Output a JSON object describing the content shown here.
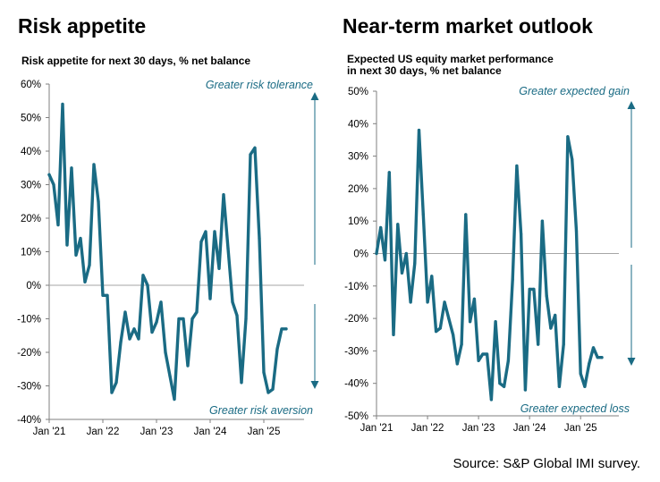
{
  "source": "Source: S&P Global IMI survey.",
  "chart_data": [
    {
      "type": "line",
      "title": "Risk appetite",
      "subtitle": "Risk appetite for next 30 days, % net balance",
      "color": "#1a6b84",
      "ylim": [
        -40,
        60
      ],
      "yticks": [
        60,
        50,
        40,
        30,
        20,
        10,
        0,
        -10,
        -20,
        -30,
        -40
      ],
      "ytick_labels": [
        "60%",
        "50%",
        "40%",
        "30%",
        "20%",
        "10%",
        "0%",
        "-10%",
        "-20%",
        "-30%",
        "-40%"
      ],
      "xlim": [
        2021.0,
        2025.75
      ],
      "xticks": [
        2021,
        2022,
        2023,
        2024,
        2025
      ],
      "xtick_labels": [
        "Jan '21",
        "Jan '22",
        "Jan '23",
        "Jan '24",
        "Jan '25"
      ],
      "annotations": {
        "top": "Greater risk tolerance",
        "bottom": "Greater risk aversion"
      },
      "grid": false,
      "series": [
        {
          "x": [
            2021.0,
            2021.083,
            2021.167,
            2021.25,
            2021.333,
            2021.417,
            2021.5,
            2021.583,
            2021.667,
            2021.75,
            2021.833,
            2021.917,
            2022.0,
            2022.083,
            2022.167,
            2022.25,
            2022.333,
            2022.417,
            2022.5,
            2022.583,
            2022.667,
            2022.75,
            2022.833,
            2022.917,
            2023.0,
            2023.083,
            2023.167,
            2023.25,
            2023.333,
            2023.417,
            2023.5,
            2023.583,
            2023.667,
            2023.75,
            2023.833,
            2023.917,
            2024.0,
            2024.083,
            2024.167,
            2024.25,
            2024.333,
            2024.417,
            2024.5,
            2024.583,
            2024.667,
            2024.75,
            2024.833,
            2024.917,
            2025.0,
            2025.083,
            2025.167,
            2025.25,
            2025.333,
            2025.417
          ],
          "y": [
            33,
            30,
            18,
            54,
            12,
            35,
            9,
            14,
            1,
            6,
            36,
            25,
            -3,
            -3,
            -32,
            -29,
            -17,
            -8,
            -16,
            -13,
            -16,
            3,
            0,
            -14,
            -11,
            -5,
            -20,
            -27,
            -34,
            -10,
            -10,
            -24,
            -10,
            -8,
            13,
            16,
            -4,
            16,
            5,
            27,
            11,
            -5,
            -9,
            -29,
            -10,
            39,
            41,
            14,
            -26,
            -32,
            -31,
            -19,
            -13,
            -13
          ]
        }
      ]
    },
    {
      "type": "line",
      "title": "Near-term market outlook",
      "subtitle": "Expected US equity market performance\nin next 30 days, % net balance",
      "color": "#1a6b84",
      "ylim": [
        -50,
        50
      ],
      "yticks": [
        50,
        40,
        30,
        20,
        10,
        0,
        -10,
        -20,
        -30,
        -40,
        -50
      ],
      "ytick_labels": [
        "50%",
        "40%",
        "30%",
        "20%",
        "10%",
        "0%",
        "-10%",
        "-20%",
        "-30%",
        "-40%",
        "-50%"
      ],
      "xlim": [
        2021.0,
        2025.75
      ],
      "xticks": [
        2021,
        2022,
        2023,
        2024,
        2025
      ],
      "xtick_labels": [
        "Jan '21",
        "Jan '22",
        "Jan '23",
        "Jan '24",
        "Jan '25"
      ],
      "annotations": {
        "top": "Greater expected gain",
        "bottom": "Greater  expected loss"
      },
      "grid": false,
      "series": [
        {
          "x": [
            2021.0,
            2021.083,
            2021.167,
            2021.25,
            2021.333,
            2021.417,
            2021.5,
            2021.583,
            2021.667,
            2021.75,
            2021.833,
            2021.917,
            2022.0,
            2022.083,
            2022.167,
            2022.25,
            2022.333,
            2022.417,
            2022.5,
            2022.583,
            2022.667,
            2022.75,
            2022.833,
            2022.917,
            2023.0,
            2023.083,
            2023.167,
            2023.25,
            2023.333,
            2023.417,
            2023.5,
            2023.583,
            2023.667,
            2023.75,
            2023.833,
            2023.917,
            2024.0,
            2024.083,
            2024.167,
            2024.25,
            2024.333,
            2024.417,
            2024.5,
            2024.583,
            2024.667,
            2024.75,
            2024.833,
            2024.917,
            2025.0,
            2025.083,
            2025.167,
            2025.25,
            2025.333,
            2025.417
          ],
          "y": [
            0,
            8,
            -2,
            25,
            -25,
            9,
            -6,
            0,
            -15,
            -3,
            38,
            12,
            -15,
            -7,
            -24,
            -23,
            -15,
            -20,
            -25,
            -34,
            -28,
            12,
            -21,
            -14,
            -33,
            -31,
            -31,
            -45,
            -21,
            -40,
            -41,
            -33,
            -8,
            27,
            6,
            -42,
            -11,
            -11,
            -28,
            10,
            -13,
            -23,
            -19,
            -41,
            -28,
            36,
            29,
            7,
            -37,
            -41,
            -34,
            -29,
            -32,
            -32
          ]
        }
      ]
    }
  ]
}
